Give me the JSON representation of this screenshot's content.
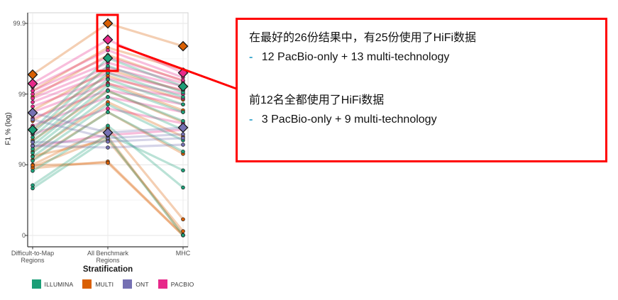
{
  "chart_data": {
    "type": "line",
    "variant": "slope-graph / parallel coordinates of F1 scores per submission",
    "title": "",
    "xlabel": "Stratification",
    "ylabel": "F1 % (log)",
    "y_scale": "log-transformed precision axis: -log10(100 - F1), range 0 to 99.9",
    "y_ticks": [
      99.9,
      99,
      90,
      0
    ],
    "y_tick_labels": [
      "99.9",
      "99",
      "90",
      "0"
    ],
    "categories": [
      "Difficult-to-Map\nRegions",
      "All Benchmark\nRegions",
      "MHC"
    ],
    "grid": true,
    "legend_position": "bottom",
    "legend": [
      {
        "name": "ILLUMINA",
        "color": "#1B9E77"
      },
      {
        "name": "MULTI",
        "color": "#D95F02"
      },
      {
        "name": "ONT",
        "color": "#7570B3"
      },
      {
        "name": "PACBIO",
        "color": "#E7298A"
      }
    ],
    "series": [
      {
        "tech": "MULTI",
        "best": true,
        "values": [
          99.47,
          99.9,
          99.79
        ]
      },
      {
        "tech": "MULTI",
        "best": false,
        "values": [
          99.1,
          99.78,
          99.55
        ]
      },
      {
        "tech": "MULTI",
        "best": false,
        "values": [
          98.9,
          99.72,
          99.35
        ]
      },
      {
        "tech": "MULTI",
        "best": false,
        "values": [
          98.3,
          99.55,
          99.1
        ]
      },
      {
        "tech": "MULTI",
        "best": false,
        "values": [
          97.6,
          99.45,
          98.8
        ]
      },
      {
        "tech": "MULTI",
        "best": false,
        "values": [
          96.8,
          99.3,
          98.3
        ]
      },
      {
        "tech": "MULTI",
        "best": false,
        "values": [
          95.5,
          99.1,
          97.5
        ]
      },
      {
        "tech": "MULTI",
        "best": false,
        "values": [
          93.5,
          98.7,
          96.0
        ]
      },
      {
        "tech": "MULTI",
        "best": false,
        "values": [
          91.5,
          98.2,
          93.0
        ]
      },
      {
        "tech": "MULTI",
        "best": false,
        "values": [
          90.0,
          97.0,
          41.0
        ]
      },
      {
        "tech": "MULTI",
        "best": false,
        "values": [
          89.3,
          96.0,
          1.5
        ]
      },
      {
        "tech": "MULTI",
        "best": false,
        "values": [
          88.8,
          91.0,
          1.0
        ]
      },
      {
        "tech": "MULTI",
        "best": false,
        "values": [
          89.8,
          90.6,
          0.3
        ]
      },
      {
        "tech": "MULTI",
        "best": false,
        "values": [
          92.5,
          95.5,
          13.0
        ]
      },
      {
        "tech": "PACBIO",
        "best": true,
        "values": [
          99.29,
          99.83,
          99.5
        ]
      },
      {
        "tech": "PACBIO",
        "best": false,
        "values": [
          99.2,
          99.76,
          99.42
        ]
      },
      {
        "tech": "PACBIO",
        "best": false,
        "values": [
          99.1,
          99.7,
          99.36
        ]
      },
      {
        "tech": "PACBIO",
        "best": false,
        "values": [
          99.0,
          99.64,
          99.3
        ]
      },
      {
        "tech": "PACBIO",
        "best": false,
        "values": [
          98.85,
          99.58,
          99.22
        ]
      },
      {
        "tech": "PACBIO",
        "best": false,
        "values": [
          98.7,
          99.5,
          99.12
        ]
      },
      {
        "tech": "PACBIO",
        "best": false,
        "values": [
          98.5,
          99.4,
          99.0
        ]
      },
      {
        "tech": "PACBIO",
        "best": false,
        "values": [
          98.2,
          99.28,
          98.85
        ]
      },
      {
        "tech": "PACBIO",
        "best": false,
        "values": [
          97.8,
          99.12,
          98.6
        ]
      },
      {
        "tech": "PACBIO",
        "best": false,
        "values": [
          97.2,
          98.9,
          98.2
        ]
      },
      {
        "tech": "PACBIO",
        "best": false,
        "values": [
          96.3,
          98.4,
          97.4
        ]
      },
      {
        "tech": "PACBIO",
        "best": false,
        "values": [
          94.5,
          96.2,
          96.8
        ]
      },
      {
        "tech": "ILLUMINA",
        "best": true,
        "values": [
          96.8,
          99.69,
          99.22
        ]
      },
      {
        "tech": "ILLUMINA",
        "best": false,
        "values": [
          96.4,
          99.6,
          99.05
        ]
      },
      {
        "tech": "ILLUMINA",
        "best": false,
        "values": [
          95.9,
          99.5,
          98.9
        ]
      },
      {
        "tech": "ILLUMINA",
        "best": false,
        "values": [
          95.3,
          99.38,
          98.6
        ]
      },
      {
        "tech": "ILLUMINA",
        "best": false,
        "values": [
          94.7,
          99.25,
          98.2
        ]
      },
      {
        "tech": "ILLUMINA",
        "best": false,
        "values": [
          94.0,
          99.1,
          97.6
        ]
      },
      {
        "tech": "ILLUMINA",
        "best": false,
        "values": [
          93.2,
          98.9,
          96.8
        ]
      },
      {
        "tech": "ILLUMINA",
        "best": false,
        "values": [
          92.3,
          98.6,
          95.5
        ]
      },
      {
        "tech": "ILLUMINA",
        "best": false,
        "values": [
          91.2,
          98.2,
          93.5
        ]
      },
      {
        "tech": "ILLUMINA",
        "best": false,
        "values": [
          87.8,
          97.2,
          79.0
        ]
      },
      {
        "tech": "ILLUMINA",
        "best": false,
        "values": [
          80.5,
          96.3,
          88.0
        ]
      },
      {
        "tech": "ILLUMINA",
        "best": false,
        "values": [
          78.5,
          95.8,
          0.8
        ]
      },
      {
        "tech": "ONT",
        "best": true,
        "values": [
          98.16,
          96.49,
          97.02
        ]
      },
      {
        "tech": "ONT",
        "best": false,
        "values": [
          97.7,
          95.8,
          96.3
        ]
      },
      {
        "tech": "ONT",
        "best": false,
        "values": [
          95.2,
          95.3,
          95.8
        ]
      },
      {
        "tech": "ONT",
        "best": false,
        "values": [
          94.6,
          94.3,
          94.8
        ]
      }
    ]
  },
  "annotation": {
    "border_color": "#ff0000",
    "bullet_color": "#3fa9cf",
    "bullet": "-",
    "line1": "在最好的26份结果中，有25份使用了HiFi数据",
    "line2": "12 PacBio-only + 13 multi-technology",
    "line3": "前12名全都使用了HiFi数据",
    "line4": "3 PacBio-only + 9 multi-technology"
  }
}
